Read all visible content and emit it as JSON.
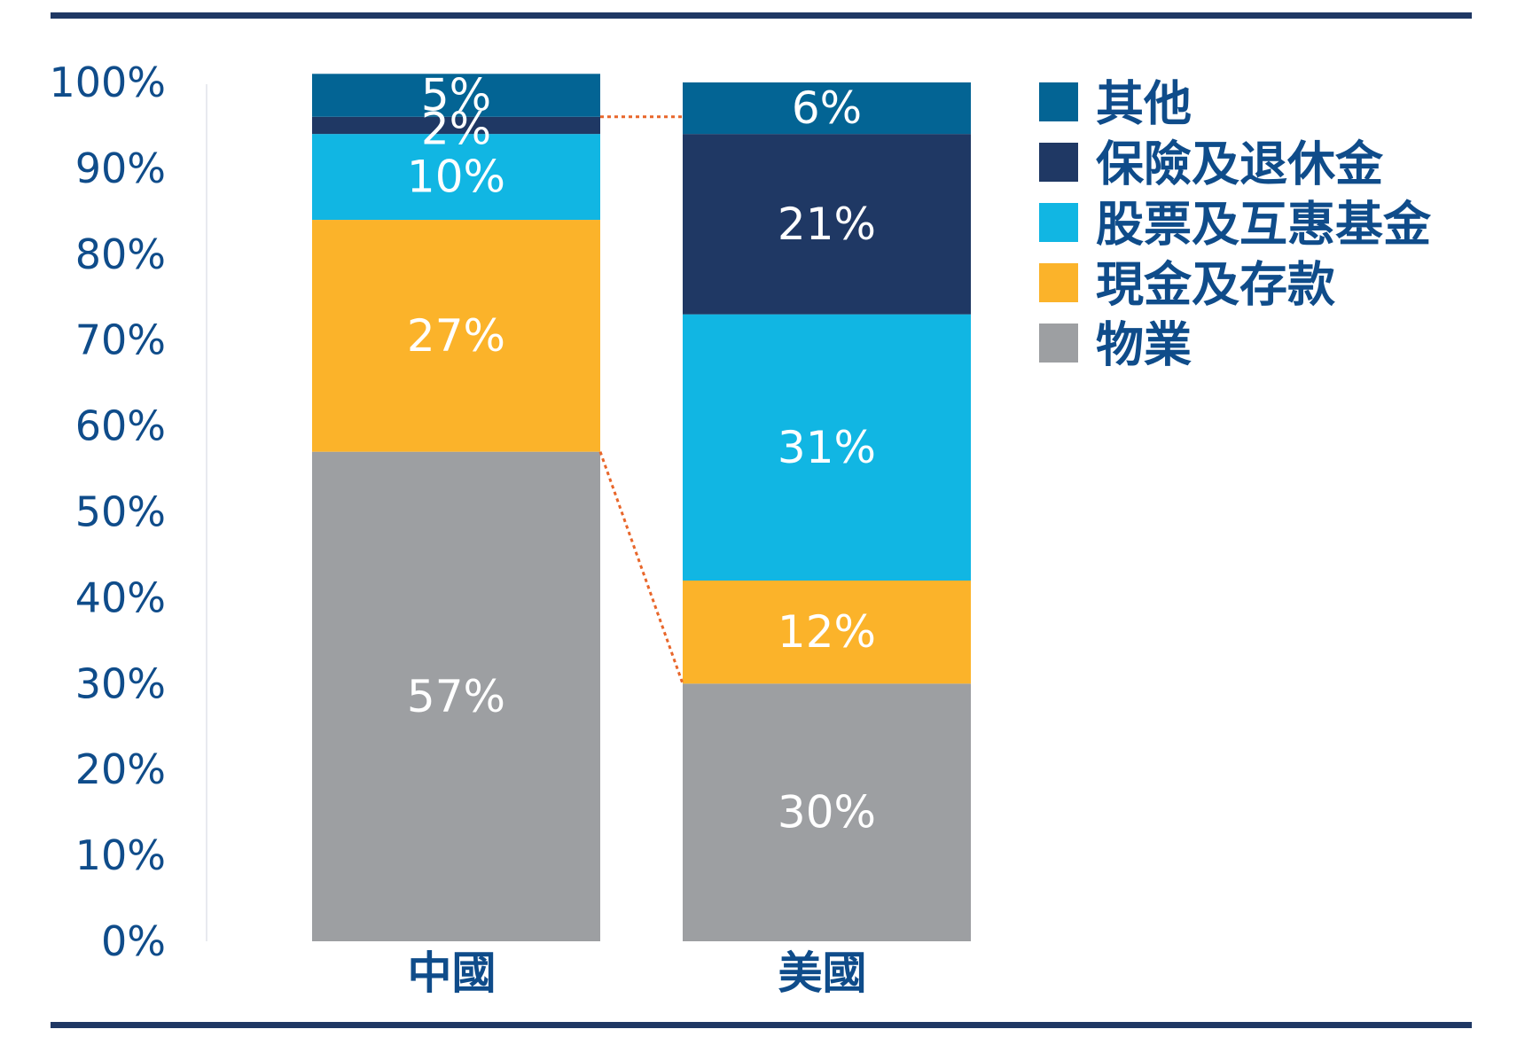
{
  "chart_data": {
    "type": "bar",
    "stacked": true,
    "categories": [
      "中國",
      "美國"
    ],
    "series": [
      {
        "name": "物業",
        "values": [
          57,
          30
        ],
        "color": "#9d9fa2"
      },
      {
        "name": "現金及存款",
        "values": [
          27,
          12
        ],
        "color": "#fbb32a"
      },
      {
        "name": "股票及互惠基金",
        "values": [
          10,
          31
        ],
        "color": "#11b6e3"
      },
      {
        "name": "保險及退休金",
        "values": [
          2,
          21
        ],
        "color": "#1f3864"
      },
      {
        "name": "其他",
        "values": [
          5,
          6
        ],
        "color": "#036494"
      }
    ],
    "ylim": [
      0,
      100
    ],
    "yticks": [
      "0%",
      "10%",
      "20%",
      "30%",
      "40%",
      "50%",
      "60%",
      "70%",
      "80%",
      "90%",
      "100%"
    ],
    "value_suffix": "%",
    "legend_position": "right",
    "legend_order": [
      "其他",
      "保險及退休金",
      "股票及互惠基金",
      "現金及存款",
      "物業"
    ],
    "connector_color": "#e8662a",
    "axis_text_color": "#0f4c8a",
    "rule_color": "#1f3864"
  }
}
